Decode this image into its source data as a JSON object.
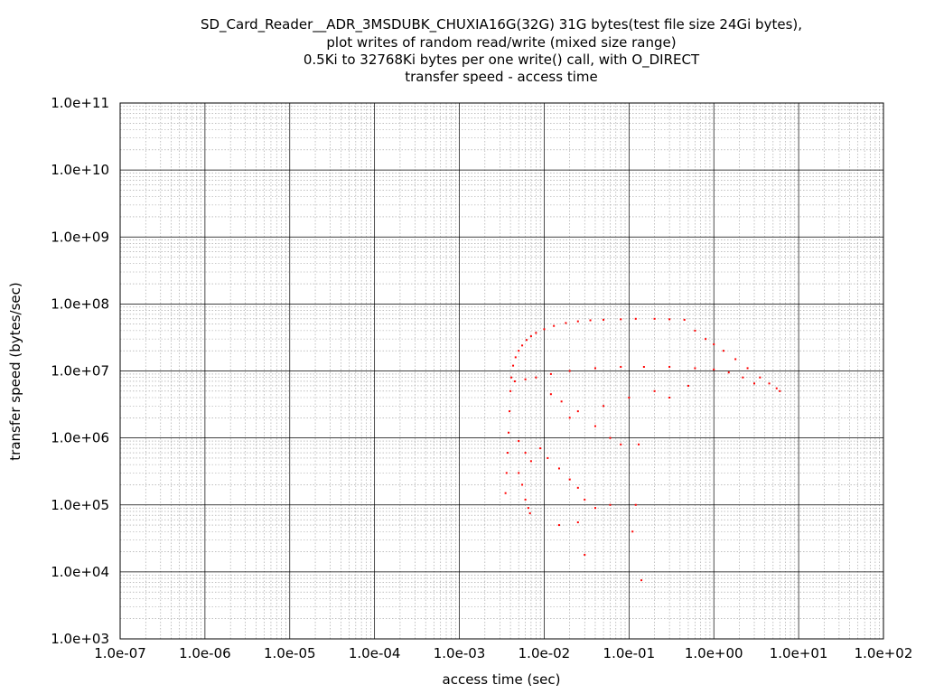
{
  "chart_data": {
    "type": "scatter",
    "title_lines": [
      "SD_Card_Reader__ADR_3MSDUBK_CHUXIA16G(32G) 31G bytes(test file size 24Gi bytes),",
      "plot writes of random read/write (mixed size range)",
      "0.5Ki to 32768Ki bytes per one write() call, with O_DIRECT",
      "transfer speed - access time"
    ],
    "xlabel": "access time (sec)",
    "ylabel": "transfer speed (bytes/sec)",
    "x_scale": "log",
    "y_scale": "log",
    "xlim": [
      1e-07,
      100
    ],
    "ylim": [
      1000,
      100000000000.0
    ],
    "x_ticks": [
      "1.0e-07",
      "1.0e-06",
      "1.0e-05",
      "1.0e-04",
      "1.0e-03",
      "1.0e-02",
      "1.0e-01",
      "1.0e+00",
      "1.0e+01",
      "1.0e+02"
    ],
    "y_ticks": [
      "1.0e+03",
      "1.0e+04",
      "1.0e+05",
      "1.0e+06",
      "1.0e+07",
      "1.0e+08",
      "1.0e+09",
      "1.0e+10",
      "1.0e+11"
    ],
    "grid": true,
    "marker_color": "#ff0000",
    "series": [
      {
        "points": [
          [
            0.0035,
            150000
          ],
          [
            0.0036,
            300000
          ],
          [
            0.0037,
            600000
          ],
          [
            0.0038,
            1200000
          ],
          [
            0.0039,
            2500000
          ],
          [
            0.004,
            5000000
          ],
          [
            0.0041,
            8000000
          ],
          [
            0.0043,
            12000000
          ],
          [
            0.0046,
            16000000
          ],
          [
            0.005,
            20000000
          ],
          [
            0.0055,
            24000000
          ],
          [
            0.0062,
            29000000
          ],
          [
            0.007,
            33000000
          ],
          [
            0.008,
            37000000
          ],
          [
            0.01,
            42000000
          ],
          [
            0.013,
            47000000
          ],
          [
            0.018,
            52000000
          ],
          [
            0.025,
            55000000
          ],
          [
            0.035,
            57000000
          ],
          [
            0.05,
            58000000
          ],
          [
            0.08,
            59000000
          ],
          [
            0.12,
            60000000
          ],
          [
            0.2,
            60000000
          ],
          [
            0.3,
            59000000
          ],
          [
            0.45,
            58000000
          ],
          [
            0.6,
            40000000
          ],
          [
            0.8,
            30000000
          ],
          [
            1.0,
            25000000
          ],
          [
            1.3,
            20000000
          ],
          [
            1.8,
            15000000
          ],
          [
            2.5,
            11000000
          ],
          [
            3.5,
            8000000
          ],
          [
            4.5,
            6500000
          ],
          [
            5.5,
            5500000
          ],
          [
            6.0,
            5000000
          ],
          [
            0.0045,
            7000000
          ],
          [
            0.006,
            7500000
          ],
          [
            0.008,
            8000000
          ],
          [
            0.012,
            9000000
          ],
          [
            0.02,
            10000000
          ],
          [
            0.04,
            11000000
          ],
          [
            0.08,
            11500000
          ],
          [
            0.15,
            11500000
          ],
          [
            0.3,
            11500000
          ],
          [
            0.6,
            11000000
          ],
          [
            1.0,
            10500000
          ],
          [
            1.5,
            9500000
          ],
          [
            2.2,
            8000000
          ],
          [
            3.0,
            6500000
          ],
          [
            0.005,
            900000
          ],
          [
            0.006,
            600000
          ],
          [
            0.007,
            450000
          ],
          [
            0.005,
            300000
          ],
          [
            0.0055,
            200000
          ],
          [
            0.006,
            120000
          ],
          [
            0.0065,
            90000
          ],
          [
            0.0068,
            75000
          ],
          [
            0.009,
            700000
          ],
          [
            0.011,
            500000
          ],
          [
            0.015,
            350000
          ],
          [
            0.02,
            240000
          ],
          [
            0.025,
            180000
          ],
          [
            0.03,
            120000
          ],
          [
            0.04,
            90000
          ],
          [
            0.06,
            100000
          ],
          [
            0.015,
            50000
          ],
          [
            0.025,
            55000
          ],
          [
            0.03,
            18000
          ],
          [
            0.11,
            40000
          ],
          [
            0.12,
            100000
          ],
          [
            0.13,
            800000
          ],
          [
            0.14,
            7500
          ],
          [
            0.02,
            2000000
          ],
          [
            0.05,
            3000000
          ],
          [
            0.1,
            4000000
          ],
          [
            0.2,
            5000000
          ],
          [
            0.3,
            4000000
          ],
          [
            0.5,
            6000000
          ],
          [
            0.012,
            4500000
          ],
          [
            0.016,
            3500000
          ],
          [
            0.025,
            2500000
          ],
          [
            0.04,
            1500000
          ],
          [
            0.06,
            1000000
          ],
          [
            0.08,
            800000
          ]
        ]
      }
    ]
  }
}
